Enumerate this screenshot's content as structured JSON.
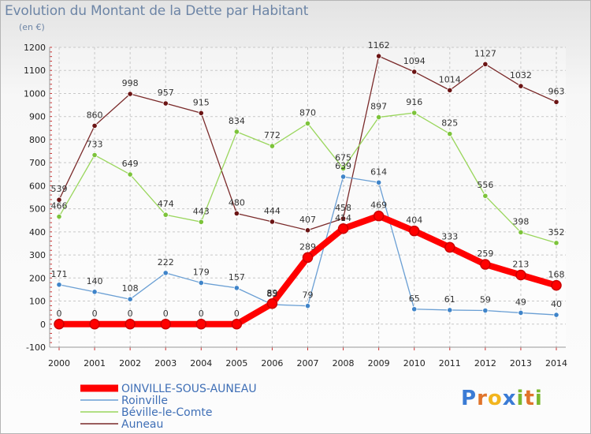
{
  "header": {
    "title": "Evolution du Montant de la Dette par Habitant",
    "subtitle": "(en €)"
  },
  "logo": {
    "letters": [
      "P",
      "r",
      "o",
      "x",
      "i",
      "t",
      "i"
    ],
    "colors": [
      "#3a7bd5",
      "#e0742b",
      "#f2b51e",
      "#3a7bd5",
      "#7ab82f",
      "#e0742b",
      "#7ab82f"
    ]
  },
  "chart_data": {
    "type": "line",
    "title": "Evolution du Montant de la Dette par Habitant",
    "subtitle": "(en €)",
    "xlabel": "",
    "ylabel": "",
    "x": [
      "2000",
      "2001",
      "2002",
      "2003",
      "2004",
      "2005",
      "2006",
      "2007",
      "2008",
      "2009",
      "2010",
      "2011",
      "2012",
      "2013",
      "2014"
    ],
    "yticks": [
      -100,
      0,
      100,
      200,
      300,
      400,
      500,
      600,
      700,
      800,
      900,
      1000,
      1100,
      1200
    ],
    "ylim": [
      -100,
      1200
    ],
    "grid": true,
    "legend_position": "bottom-left",
    "series": [
      {
        "name": "OINVILLE-SOUS-AUNEAU",
        "color": "#ff0000",
        "markerColor": "#cc0000",
        "values": [
          0,
          0,
          0,
          0,
          0,
          0,
          89,
          289,
          414,
          469,
          404,
          333,
          259,
          213,
          168
        ],
        "labels": [
          "0",
          "0",
          "0",
          "0",
          "0",
          "0",
          "89",
          "289",
          "414",
          "469",
          "404",
          "333",
          "259",
          "213",
          "168"
        ]
      },
      {
        "name": "Roinville",
        "color": "#6a9fd4",
        "markerColor": "#3f84c9",
        "values": [
          171,
          140,
          108,
          222,
          179,
          157,
          85,
          79,
          639,
          614,
          65,
          61,
          59,
          49,
          40
        ],
        "labels": [
          "171",
          "140",
          "108",
          "222",
          "179",
          "157",
          "85",
          "79",
          "639",
          "614",
          "65",
          "61",
          "59",
          "49",
          "40"
        ]
      },
      {
        "name": "Béville-le-Comte",
        "color": "#9ad65d",
        "markerColor": "#7cc33a",
        "values": [
          466,
          733,
          649,
          474,
          443,
          834,
          772,
          870,
          675,
          897,
          916,
          825,
          556,
          398,
          352
        ],
        "labels": [
          "466",
          "733",
          "649",
          "474",
          "443",
          "834",
          "772",
          "870",
          "675",
          "897",
          "916",
          "825",
          "556",
          "398",
          "352"
        ]
      },
      {
        "name": "Auneau",
        "color": "#7a2a2a",
        "markerColor": "#6b1414",
        "values": [
          539,
          860,
          998,
          957,
          915,
          480,
          444,
          407,
          458,
          1162,
          1094,
          1014,
          1127,
          1032,
          963
        ],
        "labels": [
          "539",
          "860",
          "998",
          "957",
          "915",
          "480",
          "444",
          "407",
          "458",
          "1162",
          "1094",
          "1014",
          "1127",
          "1032",
          "963"
        ]
      }
    ]
  }
}
